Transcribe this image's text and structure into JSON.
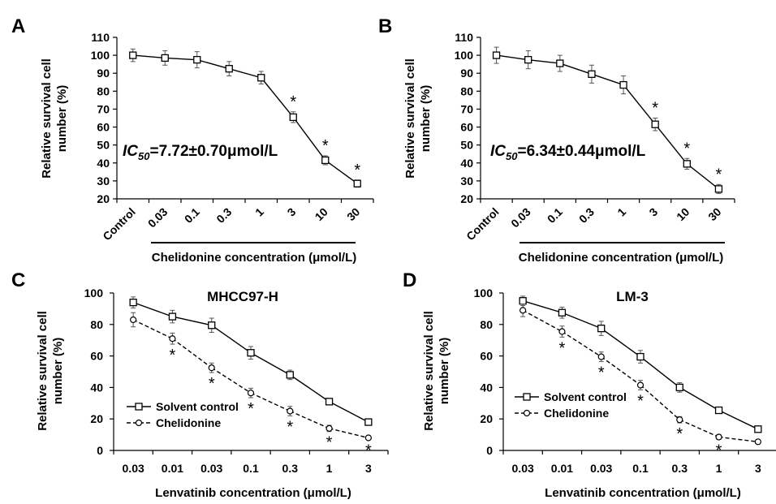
{
  "chart_data": [
    {
      "panel": "A",
      "type": "line",
      "title": "",
      "ylabel": "Relative survival cell number (%)",
      "ylabel_lines": [
        "Relative survival cell",
        "number (%)"
      ],
      "xlabel": "Chelidonine concentration  (μmol/L)",
      "categories": [
        "Control",
        "0.03",
        "0.1",
        "0.3",
        "1",
        "3",
        "10",
        "30"
      ],
      "ylim": [
        20,
        110
      ],
      "yticks": [
        20,
        30,
        40,
        50,
        60,
        70,
        80,
        90,
        100,
        110
      ],
      "tick_rotation": -45,
      "series": [
        {
          "name": "",
          "marker": "square",
          "line": "solid",
          "values": [
            100,
            98.5,
            97.5,
            92.5,
            87.5,
            65.5,
            41.5,
            28.5
          ],
          "errors": [
            3.5,
            4,
            4.5,
            4,
            3.5,
            3,
            2.5,
            2
          ],
          "significant": [
            false,
            false,
            false,
            false,
            false,
            true,
            true,
            true
          ]
        }
      ],
      "annotation_prefix": "IC",
      "annotation_sub": "50",
      "annotation_value": "=7.72±0.70μmol/L",
      "significance_symbol": "*"
    },
    {
      "panel": "B",
      "type": "line",
      "title": "",
      "ylabel": "Relative survival cell number (%)",
      "ylabel_lines": [
        "Relative survival cell",
        "number (%)"
      ],
      "xlabel": "Chelidonine concentration  (μmol/L)",
      "categories": [
        "Control",
        "0.03",
        "0.1",
        "0.3",
        "1",
        "3",
        "10",
        "30"
      ],
      "ylim": [
        20,
        110
      ],
      "yticks": [
        20,
        30,
        40,
        50,
        60,
        70,
        80,
        90,
        100,
        110
      ],
      "tick_rotation": -45,
      "series": [
        {
          "name": "",
          "marker": "square",
          "line": "solid",
          "values": [
            100,
            97.5,
            95.5,
            89.5,
            83.5,
            61.5,
            39.5,
            25.5
          ],
          "errors": [
            4.5,
            5,
            4.5,
            5,
            5,
            3.5,
            3,
            2.5
          ],
          "significant": [
            false,
            false,
            false,
            false,
            false,
            true,
            true,
            true
          ]
        }
      ],
      "annotation_prefix": "IC",
      "annotation_sub": "50",
      "annotation_value": "=6.34±0.44μmol/L",
      "significance_symbol": "*"
    },
    {
      "panel": "C",
      "type": "line",
      "title": "MHCC97-H",
      "ylabel": "Relative survival cell number (%)",
      "ylabel_lines": [
        "Relative survival cell",
        "number (%)"
      ],
      "xlabel": "Lenvatinib concentration (μmol/L)",
      "categories": [
        "0.03",
        "0.01",
        "0.03",
        "0.1",
        "0.3",
        "1",
        "3"
      ],
      "ylim": [
        0,
        100
      ],
      "yticks": [
        0,
        20,
        40,
        60,
        80,
        100
      ],
      "tick_rotation": 0,
      "legend_position": "bottom-left",
      "series": [
        {
          "name": "Solvent control",
          "marker": "square",
          "line": "solid",
          "values": [
            94,
            85,
            79.5,
            62,
            48,
            31,
            18
          ],
          "errors": [
            3.5,
            4,
            4.5,
            4,
            3,
            2,
            1.5
          ],
          "significant": [
            false,
            false,
            false,
            false,
            false,
            false,
            false
          ]
        },
        {
          "name": "Chelidonine",
          "marker": "circle",
          "line": "dashed",
          "values": [
            83,
            71,
            52.5,
            36.5,
            25,
            14,
            8
          ],
          "errors": [
            4.5,
            3.5,
            3,
            3,
            3,
            2,
            1
          ],
          "significant": [
            false,
            true,
            true,
            true,
            true,
            true,
            true
          ]
        }
      ],
      "significance_symbol": "*"
    },
    {
      "panel": "D",
      "type": "line",
      "title": "LM-3",
      "ylabel": "Relative survival cell number (%)",
      "ylabel_lines": [
        "Relative survival cell",
        "number (%)"
      ],
      "xlabel": "Lenvatinib concentration (μmol/L)",
      "categories": [
        "0.03",
        "0.01",
        "0.03",
        "0.1",
        "0.3",
        "1",
        "3"
      ],
      "ylim": [
        0,
        100
      ],
      "yticks": [
        0,
        20,
        40,
        60,
        80,
        100
      ],
      "tick_rotation": 0,
      "legend_position": "bottom-left",
      "series": [
        {
          "name": "Solvent control",
          "marker": "square",
          "line": "solid",
          "values": [
            95,
            87.5,
            77.5,
            59.5,
            40,
            25.5,
            13.5
          ],
          "errors": [
            3,
            3.5,
            4.5,
            4,
            3,
            2,
            1.5
          ],
          "significant": [
            false,
            false,
            false,
            false,
            false,
            false,
            false
          ]
        },
        {
          "name": "Chelidonine",
          "marker": "circle",
          "line": "dashed",
          "values": [
            89,
            75.5,
            59.5,
            41.5,
            19.5,
            8.5,
            5.5
          ],
          "errors": [
            4,
            3.5,
            3,
            3,
            2,
            1.5,
            1
          ],
          "significant": [
            false,
            true,
            true,
            true,
            true,
            true,
            false
          ]
        }
      ],
      "significance_symbol": "*"
    }
  ]
}
